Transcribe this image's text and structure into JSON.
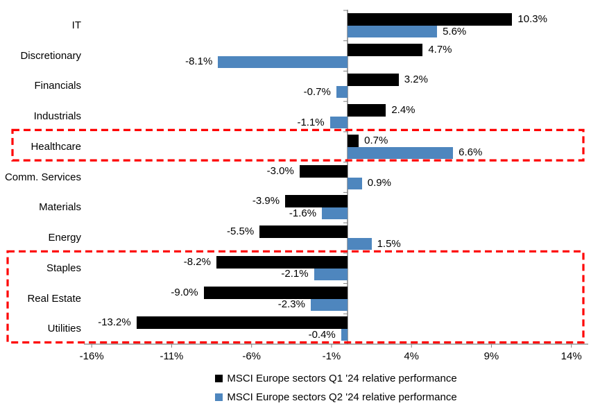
{
  "chart_data": {
    "type": "bar",
    "orientation": "horizontal",
    "unit": "%",
    "title": "",
    "grid": false,
    "legend_position": "bottom",
    "categories": [
      "IT",
      "Discretionary",
      "Financials",
      "Industrials",
      "Healthcare",
      "Comm. Services",
      "Materials",
      "Energy",
      "Staples",
      "Real Estate",
      "Utilities"
    ],
    "series": [
      {
        "name": "MSCI Europe sectors Q1 '24 relative performance",
        "color": "#000000",
        "values": [
          10.3,
          4.7,
          3.2,
          2.4,
          0.7,
          -3.0,
          -3.9,
          -5.5,
          -8.2,
          -9.0,
          -13.2
        ],
        "labels": [
          "10.3%",
          "4.7%",
          "3.2%",
          "2.4%",
          "0.7%",
          "-3.0%",
          "-3.9%",
          "-5.5%",
          "-8.2%",
          "-9.0%",
          "-13.2%"
        ]
      },
      {
        "name": "MSCI Europe sectors Q2 '24 relative performance",
        "color": "#4E86BE",
        "values": [
          5.6,
          -8.1,
          -0.7,
          -1.1,
          6.6,
          0.9,
          -1.6,
          1.5,
          -2.1,
          -2.3,
          -0.4
        ],
        "labels": [
          "5.6%",
          "-8.1%",
          "-0.7%",
          "-1.1%",
          "6.6%",
          "0.9%",
          "-1.6%",
          "1.5%",
          "-2.1%",
          "-2.3%",
          "-0.4%"
        ]
      }
    ],
    "x_axis": {
      "range": [
        -16.5,
        15
      ],
      "ticks": [
        {
          "value": -16,
          "label": "-16%"
        },
        {
          "value": -11,
          "label": "-11%"
        },
        {
          "value": -6,
          "label": "-6%"
        },
        {
          "value": -1,
          "label": "-1%"
        },
        {
          "value": 4,
          "label": "4%"
        },
        {
          "value": 9,
          "label": "9%"
        },
        {
          "value": 14,
          "label": "14%"
        }
      ]
    },
    "legend": [
      "MSCI Europe sectors Q1 '24 relative performance",
      "MSCI Europe sectors Q2 '24 relative performance"
    ],
    "highlights": [
      {
        "sectors": [
          "Healthcare"
        ],
        "row_start": 4,
        "row_end": 4
      },
      {
        "sectors": [
          "Staples",
          "Real Estate",
          "Utilities"
        ],
        "row_start": 8,
        "row_end": 10
      }
    ],
    "highlight_color": "#FE0000",
    "axis_color": "#808080"
  }
}
